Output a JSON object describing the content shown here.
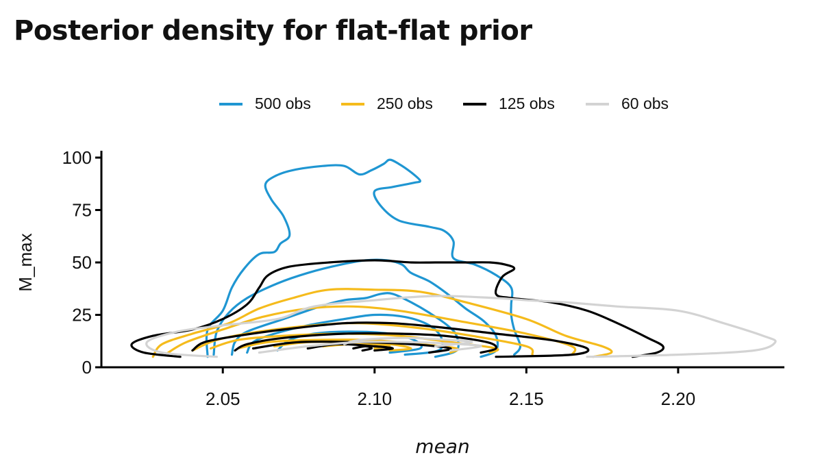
{
  "chart_data": {
    "type": "contour",
    "title": "Posterior density for flat-flat prior",
    "xlabel": "mean",
    "ylabel": "M_max",
    "xlim": [
      2.01,
      2.235
    ],
    "ylim": [
      0,
      100
    ],
    "x_ticks": [
      {
        "value": 2.05,
        "label": "2.05"
      },
      {
        "value": 2.1,
        "label": "2.10"
      },
      {
        "value": 2.15,
        "label": "2.15"
      },
      {
        "value": 2.2,
        "label": "2.20"
      }
    ],
    "y_ticks": [
      {
        "value": 0,
        "label": "0"
      },
      {
        "value": 25,
        "label": "25"
      },
      {
        "value": 50,
        "label": "50"
      },
      {
        "value": 75,
        "label": "75"
      },
      {
        "value": 100,
        "label": "100"
      }
    ],
    "grid": false,
    "legend_position": "top",
    "series": [
      {
        "name": "500 obs",
        "color": "#1F96D2",
        "contours": [
          [
            [
              2.045,
              5
            ],
            [
              2.045,
              18
            ],
            [
              2.05,
              27
            ],
            [
              2.053,
              38
            ],
            [
              2.057,
              47
            ],
            [
              2.062,
              54
            ],
            [
              2.067,
              55
            ],
            [
              2.069,
              59
            ],
            [
              2.072,
              63
            ],
            [
              2.07,
              72
            ],
            [
              2.066,
              80
            ],
            [
              2.064,
              87
            ],
            [
              2.067,
              91
            ],
            [
              2.073,
              94
            ],
            [
              2.083,
              96
            ],
            [
              2.09,
              96
            ],
            [
              2.095,
              92
            ],
            [
              2.099,
              94
            ],
            [
              2.103,
              97
            ],
            [
              2.105,
              99
            ],
            [
              2.108,
              97
            ],
            [
              2.112,
              93
            ],
            [
              2.115,
              89
            ],
            [
              2.113,
              88
            ],
            [
              2.106,
              86
            ],
            [
              2.1,
              84
            ],
            [
              2.102,
              77
            ],
            [
              2.108,
              70
            ],
            [
              2.118,
              67
            ],
            [
              2.123,
              65
            ],
            [
              2.126,
              60
            ],
            [
              2.126,
              52
            ],
            [
              2.133,
              49
            ],
            [
              2.14,
              44
            ],
            [
              2.145,
              38
            ],
            [
              2.145,
              30
            ],
            [
              2.145,
              25
            ],
            [
              2.146,
              18
            ],
            [
              2.148,
              10
            ],
            [
              2.146,
              6
            ]
          ],
          [
            [
              2.047,
              6
            ],
            [
              2.048,
              17
            ],
            [
              2.052,
              26
            ],
            [
              2.058,
              33
            ],
            [
              2.068,
              40
            ],
            [
              2.078,
              45
            ],
            [
              2.089,
              49
            ],
            [
              2.097,
              51
            ],
            [
              2.104,
              51
            ],
            [
              2.109,
              49
            ],
            [
              2.112,
              45
            ],
            [
              2.118,
              41
            ],
            [
              2.124,
              35
            ],
            [
              2.13,
              28
            ],
            [
              2.136,
              22
            ],
            [
              2.14,
              15
            ],
            [
              2.14,
              8
            ],
            [
              2.135,
              5
            ]
          ],
          [
            [
              2.053,
              6
            ],
            [
              2.054,
              12
            ],
            [
              2.058,
              17
            ],
            [
              2.07,
              23
            ],
            [
              2.082,
              29
            ],
            [
              2.09,
              32
            ],
            [
              2.097,
              33
            ],
            [
              2.102,
              35
            ],
            [
              2.106,
              35
            ],
            [
              2.112,
              31
            ],
            [
              2.118,
              26
            ],
            [
              2.124,
              20
            ],
            [
              2.127,
              15
            ],
            [
              2.127,
              8
            ],
            [
              2.12,
              5
            ]
          ],
          [
            [
              2.058,
              7
            ],
            [
              2.06,
              12
            ],
            [
              2.067,
              16
            ],
            [
              2.078,
              20
            ],
            [
              2.09,
              23
            ],
            [
              2.1,
              25
            ],
            [
              2.11,
              24
            ],
            [
              2.118,
              20
            ],
            [
              2.122,
              14
            ],
            [
              2.121,
              8
            ],
            [
              2.11,
              6
            ]
          ],
          [
            [
              2.068,
              8
            ],
            [
              2.072,
              13
            ],
            [
              2.08,
              16
            ],
            [
              2.092,
              17
            ],
            [
              2.105,
              16
            ],
            [
              2.113,
              13
            ],
            [
              2.115,
              9
            ],
            [
              2.105,
              7
            ]
          ]
        ]
      },
      {
        "name": "250 obs",
        "color": "#F5BB1C",
        "contours": [
          [
            [
              2.027,
              5
            ],
            [
              2.03,
              11
            ],
            [
              2.04,
              16
            ],
            [
              2.052,
              21
            ],
            [
              2.062,
              28
            ],
            [
              2.073,
              33
            ],
            [
              2.085,
              37
            ],
            [
              2.1,
              37
            ],
            [
              2.115,
              36
            ],
            [
              2.13,
              31
            ],
            [
              2.15,
              23
            ],
            [
              2.163,
              15
            ],
            [
              2.175,
              10
            ],
            [
              2.178,
              7
            ],
            [
              2.172,
              5
            ]
          ],
          [
            [
              2.032,
              7
            ],
            [
              2.038,
              12
            ],
            [
              2.05,
              18
            ],
            [
              2.063,
              24
            ],
            [
              2.078,
              28
            ],
            [
              2.093,
              29
            ],
            [
              2.108,
              27
            ],
            [
              2.128,
              22
            ],
            [
              2.15,
              16
            ],
            [
              2.165,
              10
            ],
            [
              2.165,
              6
            ]
          ],
          [
            [
              2.04,
              8
            ],
            [
              2.048,
              13
            ],
            [
              2.062,
              17
            ],
            [
              2.08,
              20
            ],
            [
              2.095,
              21
            ],
            [
              2.113,
              19
            ],
            [
              2.132,
              15
            ],
            [
              2.15,
              10
            ],
            [
              2.152,
              6
            ]
          ],
          [
            [
              2.046,
              9
            ],
            [
              2.055,
              13
            ],
            [
              2.07,
              15
            ],
            [
              2.09,
              16
            ],
            [
              2.108,
              15
            ],
            [
              2.125,
              12
            ],
            [
              2.14,
              9
            ],
            [
              2.138,
              7
            ]
          ],
          [
            [
              2.055,
              9
            ],
            [
              2.065,
              12
            ],
            [
              2.08,
              13
            ],
            [
              2.098,
              13
            ],
            [
              2.115,
              11
            ],
            [
              2.127,
              9
            ],
            [
              2.125,
              7
            ]
          ],
          [
            [
              2.067,
              10
            ],
            [
              2.078,
              12
            ],
            [
              2.092,
              12
            ],
            [
              2.105,
              11
            ],
            [
              2.112,
              9
            ],
            [
              2.105,
              8
            ]
          ],
          [
            [
              2.083,
              10
            ],
            [
              2.092,
              11
            ],
            [
              2.1,
              11
            ],
            [
              2.105,
              10
            ],
            [
              2.1,
              9
            ]
          ]
        ]
      },
      {
        "name": "125 obs",
        "color": "#000000",
        "contours": [
          [
            [
              2.036,
              5
            ],
            [
              2.024,
              7
            ],
            [
              2.02,
              11
            ],
            [
              2.027,
              15
            ],
            [
              2.04,
              18
            ],
            [
              2.05,
              23
            ],
            [
              2.058,
              30
            ],
            [
              2.062,
              38
            ],
            [
              2.065,
              44
            ],
            [
              2.072,
              48
            ],
            [
              2.085,
              50
            ],
            [
              2.1,
              51
            ],
            [
              2.112,
              50
            ],
            [
              2.12,
              50
            ],
            [
              2.13,
              50
            ],
            [
              2.138,
              50
            ],
            [
              2.143,
              49
            ],
            [
              2.146,
              47
            ],
            [
              2.142,
              43
            ],
            [
              2.14,
              35
            ],
            [
              2.145,
              33
            ],
            [
              2.158,
              31
            ],
            [
              2.17,
              27
            ],
            [
              2.18,
              21
            ],
            [
              2.19,
              14
            ],
            [
              2.195,
              10
            ],
            [
              2.193,
              7
            ],
            [
              2.185,
              5
            ]
          ],
          [
            [
              2.04,
              8
            ],
            [
              2.044,
              12
            ],
            [
              2.055,
              15
            ],
            [
              2.07,
              18
            ],
            [
              2.09,
              21
            ],
            [
              2.106,
              21
            ],
            [
              2.122,
              19
            ],
            [
              2.14,
              16
            ],
            [
              2.158,
              13
            ],
            [
              2.17,
              9
            ],
            [
              2.165,
              6
            ],
            [
              2.14,
              5
            ]
          ],
          [
            [
              2.054,
              8
            ],
            [
              2.058,
              11
            ],
            [
              2.07,
              14
            ],
            [
              2.09,
              16
            ],
            [
              2.108,
              16
            ],
            [
              2.123,
              15
            ],
            [
              2.137,
              12
            ],
            [
              2.14,
              9
            ],
            [
              2.135,
              7
            ]
          ],
          [
            [
              2.06,
              9
            ],
            [
              2.075,
              12
            ],
            [
              2.095,
              12
            ],
            [
              2.112,
              11
            ],
            [
              2.125,
              9
            ],
            [
              2.118,
              7
            ]
          ],
          [
            [
              2.078,
              9
            ],
            [
              2.088,
              11
            ],
            [
              2.1,
              10
            ],
            [
              2.106,
              9
            ],
            [
              2.1,
              8
            ]
          ],
          [
            [
              2.093,
              9
            ],
            [
              2.097,
              10
            ],
            [
              2.099,
              9
            ],
            [
              2.096,
              8
            ]
          ]
        ]
      },
      {
        "name": "60 obs",
        "color": "#D3D3D3",
        "contours": [
          [
            [
              2.048,
              5
            ],
            [
              2.03,
              7
            ],
            [
              2.025,
              12
            ],
            [
              2.035,
              17
            ],
            [
              2.05,
              20
            ],
            [
              2.068,
              23
            ],
            [
              2.08,
              29
            ],
            [
              2.1,
              32
            ],
            [
              2.12,
              34
            ],
            [
              2.14,
              33
            ],
            [
              2.15,
              32
            ],
            [
              2.163,
              31
            ],
            [
              2.18,
              29
            ],
            [
              2.2,
              27
            ],
            [
              2.215,
              21
            ],
            [
              2.228,
              15
            ],
            [
              2.232,
              12
            ],
            [
              2.225,
              8
            ],
            [
              2.2,
              6
            ],
            [
              2.17,
              5
            ]
          ],
          [
            [
              2.062,
              7
            ],
            [
              2.078,
              10
            ],
            [
              2.095,
              12
            ],
            [
              2.112,
              12
            ],
            [
              2.128,
              11
            ],
            [
              2.135,
              10
            ],
            [
              2.125,
              8
            ]
          ],
          [
            [
              2.09,
              11
            ],
            [
              2.095,
              13
            ],
            [
              2.11,
              14
            ],
            [
              2.125,
              13
            ],
            [
              2.132,
              12
            ],
            [
              2.12,
              10
            ]
          ]
        ]
      }
    ]
  }
}
